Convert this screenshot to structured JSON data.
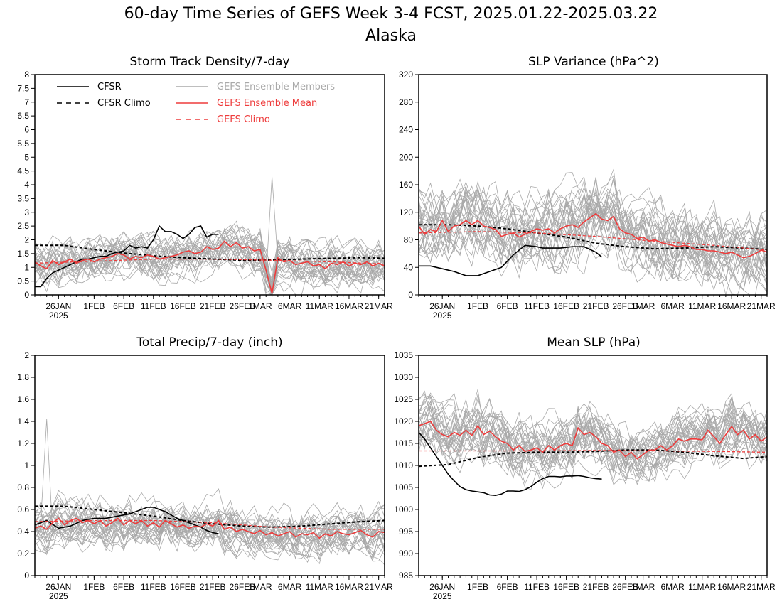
{
  "title": "60-day Time Series of GEFS Week 3-4 FCST, 2025.01.22-2025.03.22",
  "subtitle": "Alaska",
  "x_ticks": [
    "26JAN",
    "1FEB",
    "6FEB",
    "11FEB",
    "16FEB",
    "21FEB",
    "26FEB",
    "1MAR",
    "6MAR",
    "11MAR",
    "16MAR",
    "21MAR"
  ],
  "x_tick_days": [
    4,
    10,
    15,
    20,
    25,
    30,
    35,
    38,
    43,
    48,
    53,
    58
  ],
  "x_year_label": "2025",
  "colors": {
    "cfsr": "#000000",
    "members": "#a9a9a9",
    "ens_mean": "#ee3b3b",
    "gefs_climo": "#ee3b3b"
  },
  "legend": {
    "cfsr": "CFSR",
    "cfsr_climo": "CFSR Climo",
    "members": "GEFS Ensemble Members",
    "ens_mean": "GEFS Ensemble Mean",
    "gefs_climo": "GEFS Climo"
  },
  "chart_data": [
    {
      "type": "line",
      "title": "Storm Track Density/7-day",
      "xlim": [
        0,
        59
      ],
      "ylim": [
        0,
        8
      ],
      "y_ticks": [
        "0",
        "0.5",
        "1",
        "1.5",
        "2",
        "2.5",
        "3",
        "3.5",
        "4",
        "4.5",
        "5",
        "5.5",
        "6",
        "6.5",
        "7",
        "7.5",
        "8"
      ],
      "member_count": 30,
      "member_spread": 0.55,
      "member_spike": {
        "day": 40,
        "value": 4.3
      },
      "series": {
        "cfsr": {
          "x": [
            0,
            1,
            2,
            3,
            4,
            5,
            6,
            7,
            8,
            9,
            10,
            11,
            12,
            13,
            14,
            15,
            16,
            17,
            18,
            19,
            20,
            21,
            22,
            23,
            24,
            25,
            26,
            27,
            28,
            29,
            30,
            31
          ],
          "y": [
            0.3,
            0.3,
            0.6,
            0.8,
            0.9,
            1.0,
            1.1,
            1.2,
            1.3,
            1.3,
            1.35,
            1.4,
            1.4,
            1.5,
            1.55,
            1.6,
            1.8,
            1.7,
            1.75,
            1.7,
            2.0,
            2.5,
            2.3,
            2.3,
            2.2,
            2.05,
            2.2,
            2.45,
            2.5,
            2.1,
            2.2,
            2.2
          ]
        },
        "cfsr_climo": {
          "x": [
            0,
            5,
            10,
            15,
            20,
            25,
            30,
            35,
            40,
            45,
            50,
            55,
            59
          ],
          "y": [
            1.8,
            1.8,
            1.65,
            1.52,
            1.42,
            1.35,
            1.3,
            1.26,
            1.27,
            1.3,
            1.33,
            1.35,
            1.33
          ]
        },
        "gefs_climo": {
          "x": [
            0,
            10,
            20,
            30,
            40,
            50,
            59
          ],
          "y": [
            1.15,
            1.22,
            1.3,
            1.3,
            1.26,
            1.2,
            1.12
          ]
        },
        "ens_mean": {
          "x": [
            0,
            1,
            2,
            3,
            4,
            5,
            6,
            7,
            8,
            9,
            10,
            11,
            12,
            13,
            14,
            15,
            16,
            17,
            18,
            19,
            20,
            21,
            22,
            23,
            24,
            25,
            26,
            27,
            28,
            29,
            30,
            31,
            32,
            33,
            34,
            35,
            36,
            37,
            38,
            39,
            40,
            41,
            42,
            43,
            44,
            45,
            46,
            47,
            48,
            49,
            50,
            51,
            52,
            53,
            54,
            55,
            56,
            57,
            58,
            59
          ],
          "y": [
            1.2,
            1.05,
            0.95,
            1.25,
            1.1,
            1.2,
            1.3,
            1.15,
            1.25,
            1.3,
            1.2,
            1.3,
            1.35,
            1.4,
            1.5,
            1.45,
            1.3,
            1.4,
            1.35,
            1.45,
            1.4,
            1.3,
            1.35,
            1.4,
            1.45,
            1.55,
            1.6,
            1.5,
            1.55,
            1.75,
            1.65,
            1.7,
            1.95,
            1.75,
            1.9,
            1.7,
            1.75,
            1.6,
            1.65,
            0.9,
            0.05,
            1.35,
            1.2,
            1.25,
            1.1,
            1.15,
            1.2,
            1.05,
            1.1,
            0.95,
            1.15,
            1.1,
            1.2,
            1.05,
            1.15,
            1.1,
            1.2,
            1.05,
            1.15,
            1.05
          ]
        }
      }
    },
    {
      "type": "line",
      "title": "SLP Variance (hPa^2)",
      "xlim": [
        0,
        59
      ],
      "ylim": [
        0,
        320
      ],
      "y_ticks": [
        "0",
        "40",
        "80",
        "120",
        "160",
        "200",
        "240",
        "280",
        "320"
      ],
      "member_count": 30,
      "member_spread": 38,
      "series": {
        "cfsr": {
          "x": [
            0,
            2,
            4,
            6,
            8,
            10,
            12,
            14,
            16,
            18,
            20,
            21,
            22,
            24,
            26,
            28,
            30,
            31
          ],
          "y": [
            42,
            42,
            38,
            34,
            28,
            28,
            34,
            40,
            58,
            72,
            70,
            68,
            68,
            68,
            70,
            70,
            62,
            55
          ]
        },
        "cfsr_climo": {
          "x": [
            0,
            5,
            10,
            15,
            20,
            25,
            30,
            35,
            40,
            45,
            50,
            55,
            59
          ],
          "y": [
            102,
            102,
            100,
            96,
            90,
            84,
            75,
            70,
            67,
            68,
            70,
            68,
            66
          ]
        },
        "gefs_climo": {
          "x": [
            0,
            10,
            20,
            30,
            40,
            50,
            59
          ],
          "y": [
            90,
            92,
            90,
            85,
            78,
            72,
            65
          ]
        },
        "ens_mean": {
          "x": [
            0,
            1,
            2,
            3,
            4,
            5,
            6,
            7,
            8,
            9,
            10,
            11,
            12,
            13,
            14,
            15,
            16,
            17,
            18,
            19,
            20,
            21,
            22,
            23,
            24,
            25,
            26,
            27,
            28,
            29,
            30,
            31,
            32,
            33,
            34,
            35,
            36,
            37,
            38,
            39,
            40,
            41,
            42,
            43,
            44,
            45,
            46,
            47,
            48,
            49,
            50,
            51,
            52,
            53,
            54,
            55,
            56,
            57,
            58,
            59
          ],
          "y": [
            100,
            88,
            95,
            92,
            108,
            92,
            100,
            102,
            108,
            102,
            108,
            100,
            98,
            95,
            85,
            88,
            90,
            84,
            88,
            92,
            96,
            94,
            96,
            90,
            96,
            100,
            102,
            98,
            106,
            112,
            118,
            110,
            108,
            114,
            96,
            90,
            88,
            82,
            84,
            78,
            80,
            76,
            74,
            72,
            70,
            72,
            70,
            66,
            66,
            64,
            64,
            62,
            60,
            62,
            58,
            54,
            56,
            60,
            65,
            62
          ]
        }
      }
    },
    {
      "type": "line",
      "title": "Total Precip/7-day (inch)",
      "xlim": [
        0,
        59
      ],
      "ylim": [
        0,
        2
      ],
      "y_ticks": [
        "0",
        "0.2",
        "0.4",
        "0.6",
        "0.8",
        "1",
        "1.2",
        "1.4",
        "1.6",
        "1.8",
        "2"
      ],
      "member_count": 30,
      "member_spread": 0.14,
      "member_spike": {
        "day": 2,
        "value": 1.42
      },
      "series": {
        "cfsr": {
          "x": [
            0,
            2,
            4,
            6,
            8,
            10,
            12,
            14,
            16,
            18,
            19,
            20,
            22,
            24,
            26,
            28,
            29,
            30,
            31
          ],
          "y": [
            0.46,
            0.5,
            0.43,
            0.45,
            0.5,
            0.52,
            0.52,
            0.54,
            0.56,
            0.6,
            0.62,
            0.62,
            0.58,
            0.52,
            0.48,
            0.44,
            0.41,
            0.39,
            0.38
          ]
        },
        "cfsr_climo": {
          "x": [
            0,
            5,
            10,
            15,
            20,
            25,
            30,
            35,
            40,
            45,
            50,
            55,
            59
          ],
          "y": [
            0.63,
            0.63,
            0.6,
            0.57,
            0.54,
            0.5,
            0.47,
            0.45,
            0.44,
            0.45,
            0.47,
            0.49,
            0.5
          ]
        },
        "gefs_climo": {
          "x": [
            0,
            10,
            20,
            30,
            40,
            50,
            59
          ],
          "y": [
            0.49,
            0.5,
            0.5,
            0.48,
            0.44,
            0.42,
            0.42
          ]
        },
        "ens_mean": {
          "x": [
            0,
            1,
            2,
            3,
            4,
            5,
            6,
            7,
            8,
            9,
            10,
            11,
            12,
            13,
            14,
            15,
            16,
            17,
            18,
            19,
            20,
            21,
            22,
            23,
            24,
            25,
            26,
            27,
            28,
            29,
            30,
            31,
            32,
            33,
            34,
            35,
            36,
            37,
            38,
            39,
            40,
            41,
            42,
            43,
            44,
            45,
            46,
            47,
            48,
            49,
            50,
            51,
            52,
            53,
            54,
            55,
            56,
            57,
            58,
            59
          ],
          "y": [
            0.43,
            0.45,
            0.42,
            0.48,
            0.52,
            0.46,
            0.5,
            0.52,
            0.48,
            0.5,
            0.47,
            0.5,
            0.45,
            0.48,
            0.52,
            0.46,
            0.5,
            0.47,
            0.5,
            0.45,
            0.48,
            0.44,
            0.5,
            0.47,
            0.44,
            0.46,
            0.43,
            0.45,
            0.44,
            0.47,
            0.45,
            0.5,
            0.42,
            0.44,
            0.4,
            0.42,
            0.4,
            0.38,
            0.41,
            0.37,
            0.39,
            0.36,
            0.38,
            0.4,
            0.35,
            0.38,
            0.37,
            0.39,
            0.34,
            0.38,
            0.36,
            0.4,
            0.38,
            0.37,
            0.39,
            0.41,
            0.37,
            0.35,
            0.4,
            0.39
          ]
        }
      }
    },
    {
      "type": "line",
      "title": "Mean SLP (hPa)",
      "xlim": [
        0,
        59
      ],
      "ylim": [
        985,
        1035
      ],
      "y_ticks": [
        "985",
        "990",
        "995",
        "1000",
        "1005",
        "1010",
        "1015",
        "1020",
        "1025",
        "1030",
        "1035"
      ],
      "member_count": 30,
      "member_spread": 4.5,
      "series": {
        "cfsr": {
          "x": [
            0,
            1,
            2,
            3,
            4,
            5,
            6,
            7,
            8,
            9,
            10,
            11,
            12,
            13,
            14,
            15,
            16,
            17,
            18,
            19,
            20,
            21,
            22,
            23,
            24,
            25,
            26,
            27,
            28,
            29,
            30,
            31
          ],
          "y": [
            1017.5,
            1016,
            1014,
            1012,
            1010,
            1008,
            1006.5,
            1005.2,
            1004.5,
            1004.2,
            1004,
            1003.8,
            1003.3,
            1003.2,
            1003.5,
            1004.2,
            1004.2,
            1004.1,
            1004.5,
            1005.2,
            1006.2,
            1007,
            1007.5,
            1007.5,
            1007.4,
            1007.6,
            1007.6,
            1007.7,
            1007.5,
            1007.2,
            1007,
            1006.9
          ]
        },
        "cfsr_climo": {
          "x": [
            0,
            5,
            10,
            15,
            20,
            25,
            30,
            35,
            40,
            45,
            50,
            55,
            59
          ],
          "y": [
            1009.8,
            1010.2,
            1011.8,
            1012.8,
            1013.0,
            1013.0,
            1013.2,
            1013.5,
            1013.5,
            1013.0,
            1012.2,
            1011.6,
            1012.0
          ]
        },
        "gefs_climo": {
          "x": [
            0,
            10,
            20,
            30,
            40,
            50,
            59
          ],
          "y": [
            1013.3,
            1013.3,
            1013.3,
            1013.4,
            1013.3,
            1013.2,
            1013.0
          ]
        },
        "ens_mean": {
          "x": [
            0,
            1,
            2,
            3,
            4,
            5,
            6,
            7,
            8,
            9,
            10,
            11,
            12,
            13,
            14,
            15,
            16,
            17,
            18,
            19,
            20,
            21,
            22,
            23,
            24,
            25,
            26,
            27,
            28,
            29,
            30,
            31,
            32,
            33,
            34,
            35,
            36,
            37,
            38,
            39,
            40,
            41,
            42,
            43,
            44,
            45,
            46,
            47,
            48,
            49,
            50,
            51,
            52,
            53,
            54,
            55,
            56,
            57,
            58,
            59
          ],
          "y": [
            1019,
            1019.5,
            1020,
            1018,
            1017,
            1016.5,
            1017.5,
            1016.8,
            1018,
            1016.8,
            1019,
            1017,
            1017.8,
            1016.5,
            1015.5,
            1015,
            1013.5,
            1014.5,
            1013.2,
            1013.5,
            1014,
            1013,
            1014.5,
            1013.5,
            1014.5,
            1015,
            1014.5,
            1018.5,
            1017,
            1017.5,
            1016.5,
            1015,
            1014.5,
            1013,
            1013.5,
            1012,
            1013,
            1011.5,
            1012.5,
            1013.5,
            1013.5,
            1014.5,
            1013.5,
            1014.5,
            1016,
            1015.5,
            1016,
            1016,
            1015.8,
            1018,
            1016.5,
            1015,
            1017,
            1018.8,
            1017,
            1018,
            1016,
            1017,
            1015.5,
            1016.5
          ]
        }
      }
    }
  ]
}
